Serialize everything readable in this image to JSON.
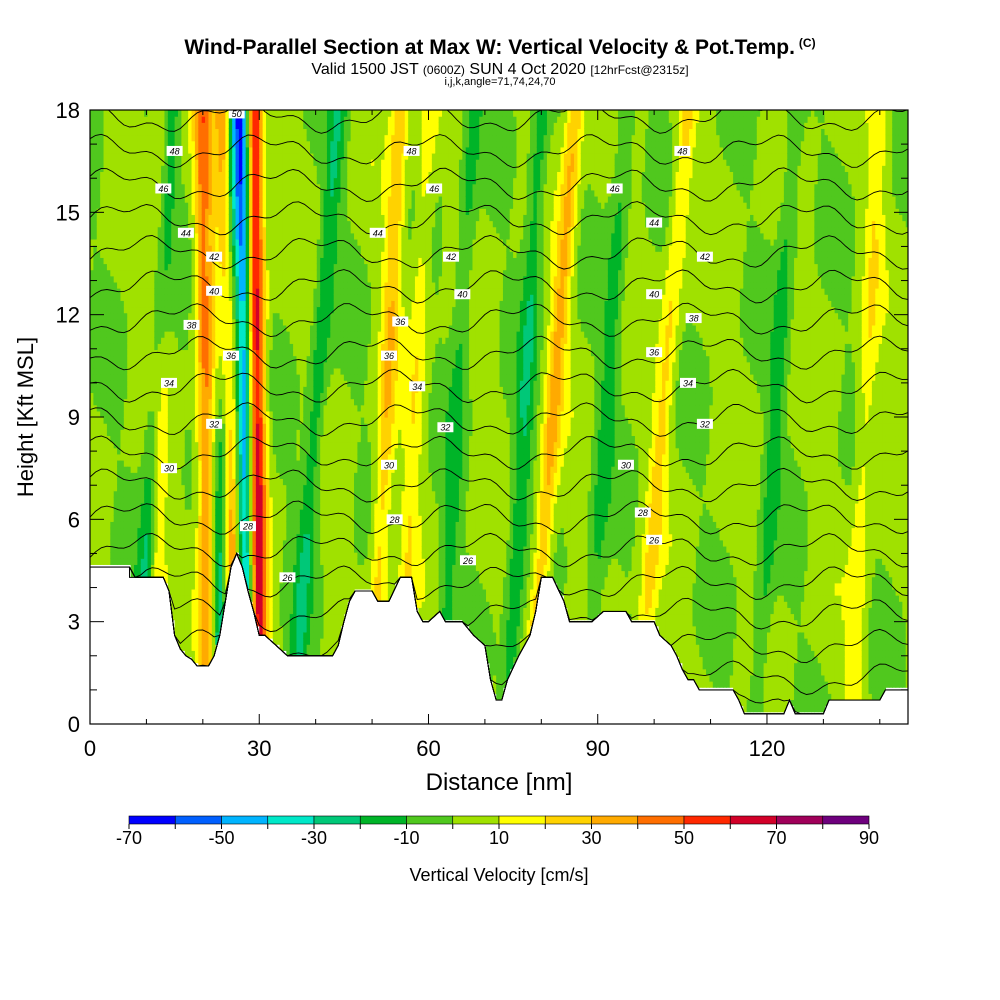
{
  "header": {
    "title": "Wind-Parallel Section at Max W: Vertical Velocity & Pot.Temp.",
    "copyright": "(C)",
    "valid_prefix": "Valid 1500 JST",
    "valid_utc": "(0600Z)",
    "valid_date": "SUN 4 Oct 2020",
    "forecast": "[12hrFcst@2315z]",
    "params": "i,j,k,angle=71,74,24,70"
  },
  "chart_data": {
    "type": "heatmap",
    "title": "Wind-Parallel Section at Max W: Vertical Velocity & Pot.Temp.",
    "xlabel": "Distance [nm]",
    "ylabel": "Height [Kft MSL]",
    "xlim": [
      0,
      145
    ],
    "ylim": [
      0,
      18
    ],
    "x_ticks": [
      "0",
      "30",
      "60",
      "90",
      "120"
    ],
    "y_ticks": [
      "0",
      "3",
      "6",
      "9",
      "12",
      "15",
      "18"
    ],
    "colorbar": {
      "label": "Vertical Velocity [cm/s]",
      "tick_labels": [
        "-70",
        "-50",
        "-30",
        "-10",
        "10",
        "30",
        "50",
        "70",
        "90"
      ],
      "bins": [
        -70,
        -60,
        -50,
        -40,
        -30,
        -20,
        -10,
        0,
        10,
        20,
        30,
        40,
        50,
        60,
        70,
        80,
        90
      ],
      "colors": [
        "#0000ff",
        "#005fff",
        "#00b4ff",
        "#00e8c8",
        "#00c878",
        "#00b428",
        "#50c81e",
        "#a0e100",
        "#ffff00",
        "#ffd200",
        "#ffaa00",
        "#ff6e00",
        "#ff2800",
        "#d20028",
        "#a0005a",
        "#6e007d"
      ]
    },
    "terrain_kft": [
      [
        0,
        4.6
      ],
      [
        7,
        4.6
      ],
      [
        7,
        4.3
      ],
      [
        13,
        4.3
      ],
      [
        14,
        3.9
      ],
      [
        15,
        2.6
      ],
      [
        16,
        2.2
      ],
      [
        17,
        2.0
      ],
      [
        18,
        1.9
      ],
      [
        19,
        1.7
      ],
      [
        21,
        1.7
      ],
      [
        22,
        2.0
      ],
      [
        23,
        2.6
      ],
      [
        24,
        3.6
      ],
      [
        25,
        4.6
      ],
      [
        26,
        5.0
      ],
      [
        27,
        4.6
      ],
      [
        28,
        3.9
      ],
      [
        29,
        3.3
      ],
      [
        30,
        2.6
      ],
      [
        31,
        2.6
      ],
      [
        33,
        2.3
      ],
      [
        35,
        2.0
      ],
      [
        43,
        2.0
      ],
      [
        44,
        2.3
      ],
      [
        45,
        3.0
      ],
      [
        46,
        3.6
      ],
      [
        47,
        3.9
      ],
      [
        50,
        3.9
      ],
      [
        51,
        3.6
      ],
      [
        53,
        3.6
      ],
      [
        55,
        4.3
      ],
      [
        57,
        4.3
      ],
      [
        58,
        3.3
      ],
      [
        59,
        3.0
      ],
      [
        60,
        3.0
      ],
      [
        62,
        3.3
      ],
      [
        63,
        3.0
      ],
      [
        66,
        3.0
      ],
      [
        68,
        2.6
      ],
      [
        70,
        2.3
      ],
      [
        71,
        1.3
      ],
      [
        72,
        0.7
      ],
      [
        73,
        0.7
      ],
      [
        74,
        1.3
      ],
      [
        76,
        2.0
      ],
      [
        78,
        2.6
      ],
      [
        79,
        3.3
      ],
      [
        80,
        4.3
      ],
      [
        82,
        4.3
      ],
      [
        84,
        3.6
      ],
      [
        85,
        3.0
      ],
      [
        89,
        3.0
      ],
      [
        91,
        3.3
      ],
      [
        95,
        3.3
      ],
      [
        96,
        3.0
      ],
      [
        100,
        3.0
      ],
      [
        101,
        2.6
      ],
      [
        103,
        2.3
      ],
      [
        104,
        2.0
      ],
      [
        105,
        1.6
      ],
      [
        106,
        1.3
      ],
      [
        107,
        1.3
      ],
      [
        108,
        1.0
      ],
      [
        114,
        1.0
      ],
      [
        115,
        0.7
      ],
      [
        116,
        0.3
      ],
      [
        123,
        0.3
      ],
      [
        124,
        0.7
      ],
      [
        125,
        0.3
      ],
      [
        130,
        0.3
      ],
      [
        131,
        0.7
      ],
      [
        140,
        0.7
      ],
      [
        141,
        1.0
      ],
      [
        145,
        1.0
      ]
    ],
    "updraft_bands": [
      {
        "x_bottom": 11,
        "x_top": 13,
        "w": 25
      },
      {
        "x_bottom": 21,
        "x_top": 20,
        "w": 40
      },
      {
        "x_bottom": 25,
        "x_top": 24,
        "w": 60
      },
      {
        "x_bottom": 30,
        "x_top": 29,
        "w": 70
      },
      {
        "x_bottom": 50,
        "x_top": 55,
        "w": 25
      },
      {
        "x_bottom": 55,
        "x_top": 60,
        "w": 15
      },
      {
        "x_bottom": 78,
        "x_top": 86,
        "w": 30
      },
      {
        "x_bottom": 97,
        "x_top": 106,
        "w": 20
      },
      {
        "x_bottom": 135,
        "x_top": 140,
        "w": 15
      }
    ],
    "downdraft_bands": [
      {
        "x_bottom": 9,
        "x_top": 14,
        "w": -30
      },
      {
        "x_bottom": 23,
        "x_top": 25,
        "w": -50
      },
      {
        "x_bottom": 28,
        "x_top": 27,
        "w": -60
      },
      {
        "x_bottom": 36,
        "x_top": 44,
        "w": -20
      },
      {
        "x_bottom": 62,
        "x_top": 68,
        "w": -15
      },
      {
        "x_bottom": 74,
        "x_top": 80,
        "w": -20
      },
      {
        "x_bottom": 88,
        "x_top": 95,
        "w": -15
      },
      {
        "x_bottom": 118,
        "x_top": 125,
        "w": -15
      }
    ],
    "theta_labels": [
      {
        "x": 26,
        "z": 17.9,
        "text": "50"
      },
      {
        "x": 15,
        "z": 16.8,
        "text": "48"
      },
      {
        "x": 57,
        "z": 16.8,
        "text": "48"
      },
      {
        "x": 105,
        "z": 16.8,
        "text": "48"
      },
      {
        "x": 13,
        "z": 15.7,
        "text": "46"
      },
      {
        "x": 61,
        "z": 15.7,
        "text": "46"
      },
      {
        "x": 93,
        "z": 15.7,
        "text": "46"
      },
      {
        "x": 17,
        "z": 14.4,
        "text": "44"
      },
      {
        "x": 51,
        "z": 14.4,
        "text": "44"
      },
      {
        "x": 100,
        "z": 14.7,
        "text": "44"
      },
      {
        "x": 22,
        "z": 13.7,
        "text": "42"
      },
      {
        "x": 64,
        "z": 13.7,
        "text": "42"
      },
      {
        "x": 109,
        "z": 13.7,
        "text": "42"
      },
      {
        "x": 22,
        "z": 12.7,
        "text": "40"
      },
      {
        "x": 66,
        "z": 12.6,
        "text": "40"
      },
      {
        "x": 100,
        "z": 12.6,
        "text": "40"
      },
      {
        "x": 18,
        "z": 11.7,
        "text": "38"
      },
      {
        "x": 55,
        "z": 11.8,
        "text": "36"
      },
      {
        "x": 107,
        "z": 11.9,
        "text": "38"
      },
      {
        "x": 25,
        "z": 10.8,
        "text": "36"
      },
      {
        "x": 53,
        "z": 10.8,
        "text": "36"
      },
      {
        "x": 100,
        "z": 10.9,
        "text": "36"
      },
      {
        "x": 14,
        "z": 10.0,
        "text": "34"
      },
      {
        "x": 58,
        "z": 9.9,
        "text": "34"
      },
      {
        "x": 106,
        "z": 10.0,
        "text": "34"
      },
      {
        "x": 22,
        "z": 8.8,
        "text": "32"
      },
      {
        "x": 63,
        "z": 8.7,
        "text": "32"
      },
      {
        "x": 109,
        "z": 8.8,
        "text": "32"
      },
      {
        "x": 14,
        "z": 7.5,
        "text": "30"
      },
      {
        "x": 53,
        "z": 7.6,
        "text": "30"
      },
      {
        "x": 95,
        "z": 7.6,
        "text": "30"
      },
      {
        "x": 28,
        "z": 5.8,
        "text": "28"
      },
      {
        "x": 54,
        "z": 6.0,
        "text": "28"
      },
      {
        "x": 98,
        "z": 6.2,
        "text": "28"
      },
      {
        "x": 35,
        "z": 4.3,
        "text": "26"
      },
      {
        "x": 67,
        "z": 4.8,
        "text": "26"
      },
      {
        "x": 100,
        "z": 5.4,
        "text": "26"
      }
    ]
  }
}
